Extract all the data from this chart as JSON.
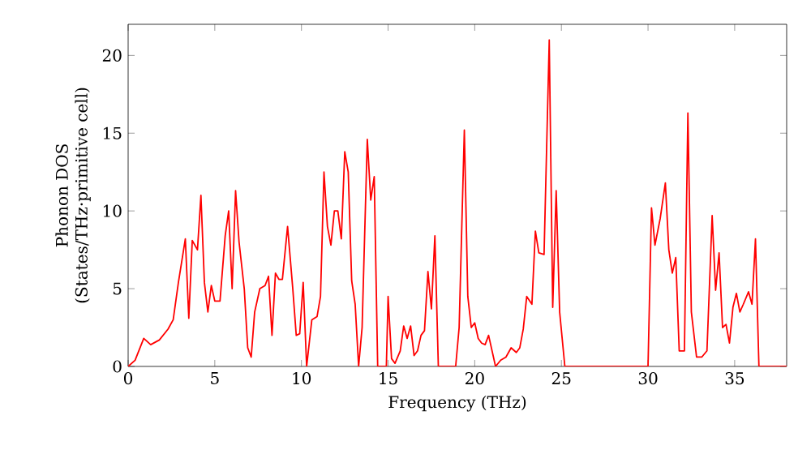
{
  "chart_data": {
    "type": "line",
    "xlabel": "Frequency (THz)",
    "ylabel": "Phonon DOS\n(States/THz·primitive cell)",
    "xlim": [
      0,
      38
    ],
    "ylim": [
      0,
      22
    ],
    "xticks": [
      0,
      5,
      10,
      15,
      20,
      25,
      30,
      35
    ],
    "yticks": [
      0,
      5,
      10,
      15,
      20
    ],
    "series": [
      {
        "color": "#ff0000",
        "x": [
          0,
          0.4,
          0.9,
          1.3,
          1.8,
          2.3,
          2.6,
          2.9,
          3.3,
          3.5,
          3.7,
          4.0,
          4.2,
          4.4,
          4.6,
          4.8,
          5.0,
          5.3,
          5.6,
          5.8,
          6.0,
          6.2,
          6.4,
          6.7,
          6.9,
          7.1,
          7.3,
          7.6,
          7.9,
          8.1,
          8.3,
          8.5,
          8.7,
          8.9,
          9.2,
          9.5,
          9.7,
          9.9,
          10.1,
          10.3,
          10.6,
          10.9,
          11.1,
          11.3,
          11.5,
          11.7,
          11.9,
          12.1,
          12.3,
          12.5,
          12.7,
          12.9,
          13.1,
          13.3,
          13.5,
          13.8,
          14.0,
          14.2,
          14.4,
          14.9,
          15.0,
          15.2,
          15.4,
          15.7,
          15.9,
          16.1,
          16.3,
          16.5,
          16.7,
          16.9,
          17.1,
          17.3,
          17.5,
          17.7,
          17.9,
          18.9,
          19.1,
          19.4,
          19.6,
          19.8,
          20.0,
          20.2,
          20.4,
          20.6,
          20.8,
          21.0,
          21.2,
          21.5,
          21.8,
          22.1,
          22.4,
          22.6,
          22.8,
          23.0,
          23.3,
          23.5,
          23.7,
          24.0,
          24.3,
          24.5,
          24.7,
          24.9,
          25.2,
          30.0,
          30.2,
          30.4,
          30.7,
          31.0,
          31.2,
          31.4,
          31.6,
          31.8,
          32.1,
          32.3,
          32.5,
          32.8,
          33.1,
          33.4,
          33.7,
          33.9,
          34.1,
          34.3,
          34.5,
          34.7,
          34.9,
          35.1,
          35.3,
          35.5,
          35.8,
          36.0,
          36.2,
          36.4,
          38
        ],
        "values": [
          0,
          0.4,
          1.8,
          1.4,
          1.7,
          2.4,
          3.0,
          5.4,
          8.2,
          3.1,
          8.1,
          7.5,
          11.0,
          5.4,
          3.5,
          5.2,
          4.2,
          4.2,
          8.4,
          10.0,
          5.0,
          11.3,
          8.0,
          5.0,
          1.2,
          0.6,
          3.5,
          5.0,
          5.2,
          5.8,
          2.0,
          6.0,
          5.6,
          5.6,
          9.0,
          5.0,
          2.0,
          2.1,
          5.4,
          0,
          3.0,
          3.2,
          4.5,
          12.5,
          9.0,
          7.8,
          10.0,
          10.0,
          8.2,
          13.8,
          12.5,
          5.5,
          4.0,
          0,
          2.5,
          14.6,
          10.7,
          12.2,
          0,
          0,
          4.5,
          0.5,
          0.2,
          1.0,
          2.6,
          1.8,
          2.6,
          0.7,
          1.0,
          2.0,
          2.3,
          6.1,
          3.7,
          8.4,
          0,
          0,
          2.5,
          15.2,
          4.5,
          2.5,
          2.8,
          1.8,
          1.5,
          1.4,
          2.0,
          1.0,
          0,
          0.4,
          0.6,
          1.2,
          0.9,
          1.2,
          2.4,
          4.5,
          4.0,
          8.7,
          7.3,
          7.2,
          21.0,
          3.8,
          11.3,
          3.5,
          0,
          0,
          10.2,
          7.8,
          9.5,
          11.8,
          7.5,
          6.0,
          7.0,
          1.0,
          1.0,
          16.3,
          3.5,
          0.6,
          0.6,
          1.0,
          9.7,
          4.9,
          7.3,
          2.5,
          2.7,
          1.5,
          3.8,
          4.7,
          3.5,
          4.0,
          4.8,
          4.0,
          8.2,
          0,
          0
        ]
      }
    ]
  }
}
